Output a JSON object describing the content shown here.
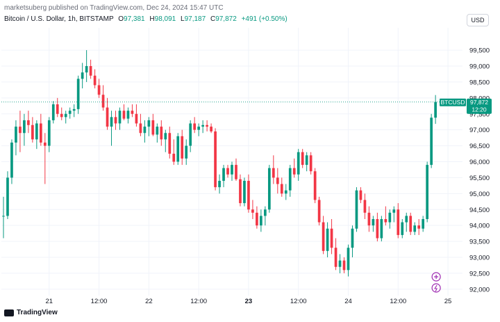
{
  "header": {
    "publisher_line": "marketsuberg published on TradingView.com, Dec 24, 2024 15:47 UTC"
  },
  "legend": {
    "symbol": "Bitcoin / U.S. Dollar, 1h, BITSTAMP",
    "open_label": "O",
    "open": "97,381",
    "high_label": "H",
    "high": "98,091",
    "low_label": "L",
    "low": "97,187",
    "close_label": "C",
    "close": "97,872",
    "change": "+491 (+0.50%)"
  },
  "currency": "USD",
  "price_tag": {
    "ticker": "BTCUSD",
    "price": "97,872",
    "countdown": "12:20"
  },
  "footer": {
    "brand": "TradingView"
  },
  "colors": {
    "up": "#089981",
    "down": "#f23645",
    "grid": "#f0f3fa",
    "last_price_line": "#089981",
    "event_marker": "#9c27b0"
  },
  "event_icons": [
    "plus-event-icon",
    "lightning-event-icon"
  ],
  "chart_data": {
    "type": "candlestick",
    "title": "",
    "grid": true,
    "y_axis_position": "right",
    "ylim": [
      91800,
      100200
    ],
    "yticks": [
      92000,
      92500,
      93000,
      93500,
      94000,
      94500,
      95000,
      95500,
      96000,
      96500,
      97000,
      97500,
      98000,
      98500,
      99000,
      99500
    ],
    "ytick_labels": [
      "92,000",
      "92,500",
      "93,000",
      "93,500",
      "94,000",
      "94,500",
      "95,000",
      "95,500",
      "96,000",
      "96,500",
      "97,000",
      "97,500",
      "98,000",
      "98,500",
      "99,000",
      "99,500"
    ],
    "xticks": [
      {
        "label": "21",
        "index": 11,
        "bold": false
      },
      {
        "label": "12:00",
        "index": 23,
        "bold": false
      },
      {
        "label": "22",
        "index": 35,
        "bold": false
      },
      {
        "label": "12:00",
        "index": 47,
        "bold": false
      },
      {
        "label": "23",
        "index": 59,
        "bold": true
      },
      {
        "label": "12:00",
        "index": 71,
        "bold": false
      },
      {
        "label": "24",
        "index": 83,
        "bold": false
      },
      {
        "label": "12:00",
        "index": 95,
        "bold": false
      },
      {
        "label": "25",
        "index": 107,
        "bold": false
      }
    ],
    "last_price": 97872,
    "candles": [
      [
        94300,
        94900,
        93600,
        94300
      ],
      [
        94300,
        95700,
        94200,
        95500
      ],
      [
        95500,
        96700,
        95300,
        96600
      ],
      [
        96600,
        97300,
        96200,
        97100
      ],
      [
        97100,
        97600,
        96300,
        96900
      ],
      [
        96900,
        97500,
        96500,
        97300
      ],
      [
        97300,
        97600,
        96900,
        97150
      ],
      [
        97150,
        97400,
        96600,
        96700
      ],
      [
        96700,
        97300,
        96400,
        97200
      ],
      [
        97200,
        97500,
        96500,
        96600
      ],
      [
        96600,
        96900,
        95300,
        96500
      ],
      [
        96500,
        97400,
        96300,
        97300
      ],
      [
        97300,
        97900,
        97200,
        97800
      ],
      [
        97800,
        98000,
        97400,
        97500
      ],
      [
        97500,
        97700,
        97300,
        97400
      ],
      [
        97400,
        97600,
        97200,
        97500
      ],
      [
        97500,
        97700,
        97350,
        97600
      ],
      [
        97600,
        97800,
        97400,
        97650
      ],
      [
        97650,
        98700,
        97500,
        98600
      ],
      [
        98600,
        99100,
        98300,
        98800
      ],
      [
        98800,
        99500,
        98500,
        99000
      ],
      [
        99000,
        99200,
        98600,
        98700
      ],
      [
        98700,
        98900,
        98300,
        98400
      ],
      [
        98400,
        98600,
        98000,
        98100
      ],
      [
        98100,
        98400,
        97600,
        97700
      ],
      [
        97700,
        98000,
        97000,
        97100
      ],
      [
        97100,
        97600,
        96500,
        97400
      ],
      [
        97400,
        97600,
        97000,
        97200
      ],
      [
        97200,
        97700,
        97000,
        97600
      ],
      [
        97600,
        97800,
        97300,
        97350
      ],
      [
        97350,
        97700,
        97200,
        97600
      ],
      [
        97600,
        97800,
        97400,
        97500
      ],
      [
        97500,
        97800,
        97100,
        97200
      ],
      [
        97200,
        97500,
        96800,
        96900
      ],
      [
        96900,
        97300,
        96600,
        97100
      ],
      [
        97100,
        97400,
        96800,
        97300
      ],
      [
        97300,
        97500,
        96800,
        96850
      ],
      [
        96850,
        97200,
        96600,
        97100
      ],
      [
        97100,
        97300,
        96500,
        96700
      ],
      [
        96700,
        97000,
        96300,
        96900
      ],
      [
        96900,
        97100,
        96100,
        96250
      ],
      [
        96250,
        96700,
        95900,
        96000
      ],
      [
        96000,
        96900,
        95900,
        96800
      ],
      [
        96800,
        97000,
        95900,
        96100
      ],
      [
        96100,
        96700,
        95900,
        96500
      ],
      [
        96500,
        97300,
        96300,
        97200
      ],
      [
        97200,
        97400,
        96900,
        97000
      ],
      [
        97000,
        97200,
        96800,
        97100
      ],
      [
        97100,
        97300,
        96900,
        97150
      ],
      [
        97150,
        97300,
        96950,
        97100
      ],
      [
        97100,
        97200,
        96900,
        96950
      ],
      [
        96950,
        97050,
        95100,
        95200
      ],
      [
        95200,
        95600,
        95000,
        95400
      ],
      [
        95400,
        95900,
        95200,
        95800
      ],
      [
        95800,
        95900,
        95500,
        95600
      ],
      [
        95600,
        96000,
        95400,
        95900
      ],
      [
        95900,
        96100,
        95400,
        95450
      ],
      [
        95450,
        95600,
        94600,
        94700
      ],
      [
        94700,
        95500,
        94600,
        95400
      ],
      [
        95400,
        95600,
        94400,
        94500
      ],
      [
        94500,
        94800,
        94200,
        94400
      ],
      [
        94400,
        94600,
        93900,
        94000
      ],
      [
        94000,
        94500,
        93800,
        94300
      ],
      [
        94300,
        94600,
        94000,
        94500
      ],
      [
        94500,
        95900,
        94400,
        95800
      ],
      [
        95800,
        96200,
        95300,
        95500
      ],
      [
        95500,
        95800,
        95000,
        95300
      ],
      [
        95300,
        95500,
        94900,
        95000
      ],
      [
        95000,
        95300,
        94800,
        95100
      ],
      [
        95100,
        95900,
        94900,
        95800
      ],
      [
        95800,
        96100,
        95500,
        95600
      ],
      [
        95600,
        96400,
        95400,
        96300
      ],
      [
        96300,
        96400,
        95800,
        95900
      ],
      [
        95900,
        96300,
        95700,
        96200
      ],
      [
        96200,
        96300,
        95600,
        95700
      ],
      [
        95700,
        95800,
        94700,
        94800
      ],
      [
        94800,
        94900,
        94000,
        94100
      ],
      [
        94100,
        94300,
        93100,
        93200
      ],
      [
        93200,
        94100,
        93000,
        93900
      ],
      [
        93900,
        94200,
        93100,
        93300
      ],
      [
        93300,
        93600,
        92600,
        92700
      ],
      [
        92700,
        93100,
        92500,
        92900
      ],
      [
        92900,
        93000,
        92500,
        92600
      ],
      [
        92600,
        93400,
        92400,
        93300
      ],
      [
        93300,
        94000,
        93000,
        93900
      ],
      [
        93900,
        95200,
        93800,
        95100
      ],
      [
        95100,
        95200,
        94700,
        94800
      ],
      [
        94800,
        95000,
        94200,
        94400
      ],
      [
        94400,
        94600,
        93800,
        94000
      ],
      [
        94000,
        94300,
        93800,
        94200
      ],
      [
        94200,
        94400,
        93500,
        93600
      ],
      [
        93600,
        94300,
        93500,
        94200
      ],
      [
        94200,
        94600,
        94000,
        94100
      ],
      [
        94100,
        94500,
        93900,
        94400
      ],
      [
        94400,
        94600,
        94100,
        94500
      ],
      [
        94500,
        94700,
        93600,
        93700
      ],
      [
        93700,
        94200,
        93600,
        94100
      ],
      [
        94100,
        94400,
        93800,
        94300
      ],
      [
        94300,
        94400,
        93700,
        93800
      ],
      [
        93800,
        94100,
        93700,
        94000
      ],
      [
        94000,
        94200,
        93700,
        93900
      ],
      [
        93900,
        94300,
        93800,
        94200
      ],
      [
        94200,
        96000,
        94100,
        95900
      ],
      [
        95900,
        97500,
        95800,
        97381
      ],
      [
        97381,
        98091,
        97187,
        97872
      ]
    ]
  }
}
